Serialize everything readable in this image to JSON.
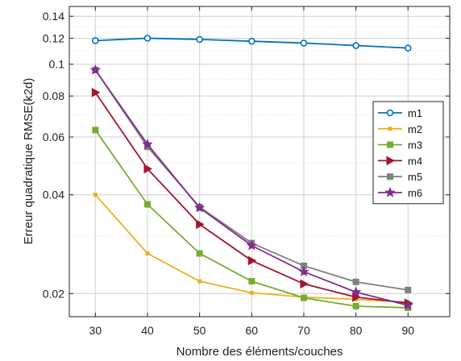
{
  "chart_data": {
    "type": "line",
    "title": "",
    "xlabel": "Nombre des éléments/couches",
    "ylabel": "Erreur quadratique RMSE(k2d)",
    "x": [
      30,
      40,
      50,
      60,
      70,
      80,
      90
    ],
    "xlim": [
      25,
      98
    ],
    "ylim": [
      0.017,
      0.15
    ],
    "yscale": "log",
    "xticks": [
      30,
      40,
      50,
      60,
      70,
      80,
      90
    ],
    "yticks": [
      0.02,
      0.04,
      0.06,
      0.08,
      0.1,
      0.12,
      0.14
    ],
    "ytick_labels": [
      "0.02",
      "0.04",
      "0.06",
      "0.08",
      "0.1",
      "0.12",
      "0.14"
    ],
    "grid": true,
    "legend_position": "right",
    "series": [
      {
        "name": "m1",
        "color": "#0072BD",
        "marker": "circle",
        "values": [
          0.118,
          0.12,
          0.119,
          0.1175,
          0.116,
          0.114,
          0.112
        ]
      },
      {
        "name": "m2",
        "color": "#EDB120",
        "marker": "point",
        "values": [
          0.04,
          0.0265,
          0.0218,
          0.0201,
          0.0195,
          0.0192,
          0.0188
        ]
      },
      {
        "name": "m3",
        "color": "#77AC30",
        "marker": "square",
        "values": [
          0.063,
          0.0374,
          0.0265,
          0.0218,
          0.0194,
          0.0183,
          0.0181
        ]
      },
      {
        "name": "m4",
        "color": "#A2142F",
        "marker": "triangle-right",
        "values": [
          0.082,
          0.048,
          0.0325,
          0.0252,
          0.0214,
          0.0195,
          0.0187
        ]
      },
      {
        "name": "m5",
        "color": "#7F7F7F",
        "marker": "square",
        "values": [
          0.096,
          0.056,
          0.0367,
          0.0285,
          0.0243,
          0.0217,
          0.0205
        ]
      },
      {
        "name": "m6",
        "color": "#7E2F8E",
        "marker": "star",
        "values": [
          0.096,
          0.057,
          0.0365,
          0.028,
          0.0233,
          0.0202,
          0.0184
        ]
      }
    ]
  }
}
